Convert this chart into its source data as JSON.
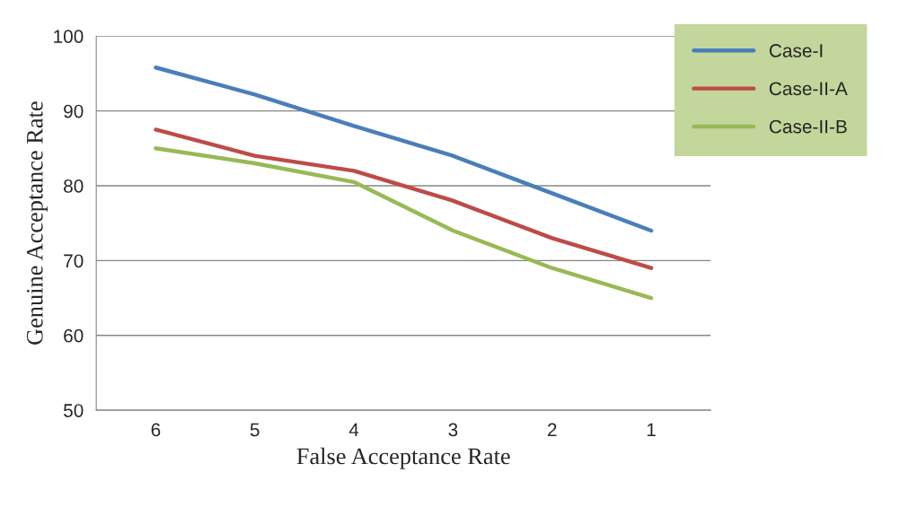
{
  "chart_data": {
    "type": "line",
    "xlabel": "False Acceptance Rate",
    "ylabel": "Genuine Acceptance Rate",
    "categories": [
      "6",
      "5",
      "4",
      "3",
      "2",
      "1"
    ],
    "series": [
      {
        "name": "Case-I",
        "color": "#4a7ebb",
        "values": [
          95.8,
          92.2,
          88,
          84,
          79,
          74
        ]
      },
      {
        "name": "Case-II-A",
        "color": "#be4b48",
        "values": [
          87.5,
          84,
          82,
          78,
          73,
          69
        ]
      },
      {
        "name": "Case-II-B",
        "color": "#98b954",
        "values": [
          85,
          83,
          80.5,
          74,
          69,
          65
        ]
      }
    ],
    "ylim": [
      50,
      100
    ],
    "yticks": [
      50,
      60,
      70,
      80,
      90,
      100
    ],
    "grid": "y",
    "legend": "top right",
    "marker": "none",
    "line_style": "solid"
  }
}
